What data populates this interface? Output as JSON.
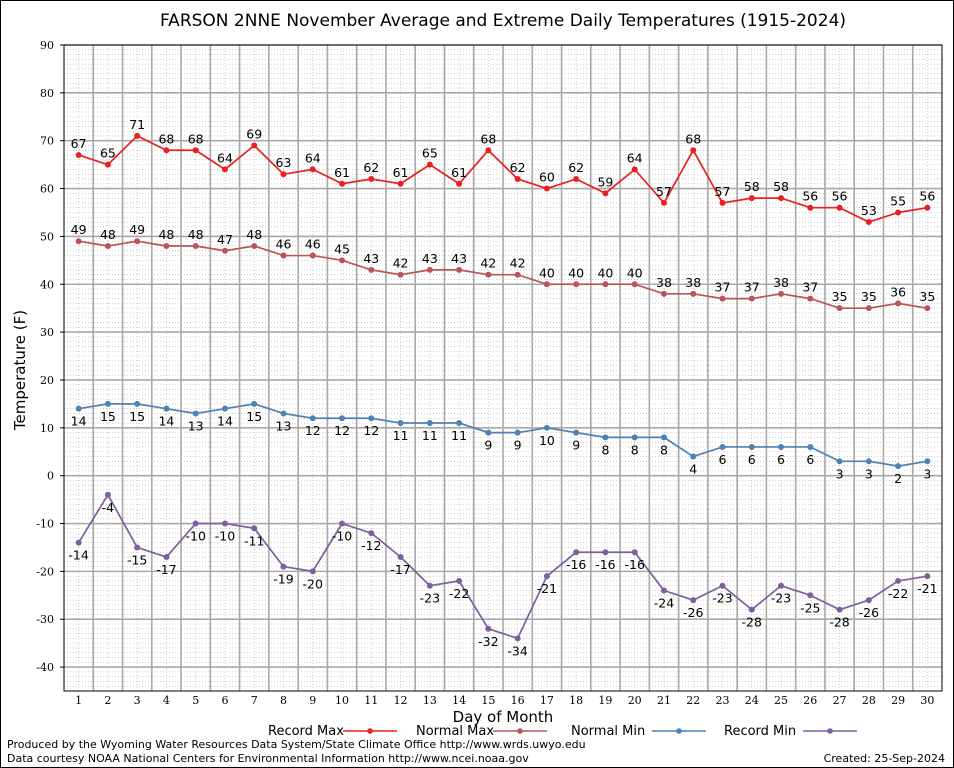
{
  "chart_data": {
    "type": "line",
    "title": "FARSON 2NNE November Average and Extreme Daily Temperatures (1915-2024)",
    "xlabel": "Day of Month",
    "ylabel": "Temperature (F)",
    "ylim": [
      -45,
      90
    ],
    "y_ticks": [
      90,
      80,
      70,
      60,
      50,
      40,
      30,
      20,
      10,
      0,
      -10,
      -20,
      -30,
      -40
    ],
    "x": [
      1,
      2,
      3,
      4,
      5,
      6,
      7,
      8,
      9,
      10,
      11,
      12,
      13,
      14,
      15,
      16,
      17,
      18,
      19,
      20,
      21,
      22,
      23,
      24,
      25,
      26,
      27,
      28,
      29,
      30
    ],
    "grid": true,
    "legend_placement": "bottom",
    "series": [
      {
        "name": "Record Max",
        "color": "#e8201f",
        "label_position": "above",
        "values": [
          67,
          65,
          71,
          68,
          68,
          64,
          69,
          63,
          64,
          61,
          62,
          61,
          65,
          61,
          68,
          62,
          60,
          62,
          59,
          64,
          57,
          68,
          57,
          58,
          58,
          56,
          56,
          53,
          55,
          56
        ]
      },
      {
        "name": "Normal Max",
        "color": "#b95556",
        "label_position": "above",
        "values": [
          49,
          48,
          49,
          48,
          48,
          47,
          48,
          46,
          46,
          45,
          43,
          42,
          43,
          43,
          42,
          42,
          40,
          40,
          40,
          40,
          38,
          38,
          37,
          37,
          38,
          37,
          35,
          35,
          36,
          35
        ]
      },
      {
        "name": "Normal Min",
        "color": "#4f81b5",
        "label_position": "below",
        "values": [
          14,
          15,
          15,
          14,
          13,
          14,
          15,
          13,
          12,
          12,
          12,
          11,
          11,
          11,
          9,
          9,
          10,
          9,
          8,
          8,
          8,
          4,
          6,
          6,
          6,
          6,
          3,
          3,
          2,
          3
        ]
      },
      {
        "name": "Record Min",
        "color": "#7e5f9c",
        "label_position": "below",
        "values": [
          -14,
          -4,
          -15,
          -17,
          -10,
          -10,
          -11,
          -19,
          -20,
          -10,
          -12,
          -17,
          -23,
          -22,
          -32,
          -34,
          -21,
          -16,
          -16,
          -16,
          -24,
          -26,
          -23,
          -28,
          -23,
          -25,
          -28,
          -26,
          -22,
          -21
        ]
      }
    ]
  },
  "legend": [
    {
      "label": "Record Max"
    },
    {
      "label": "Normal Max"
    },
    {
      "label": "Normal Min"
    },
    {
      "label": "Record Min"
    }
  ],
  "footer": {
    "line1": "Produced by the Wyoming Water Resources Data System/State Climate Office http://www.wrds.uwyo.edu",
    "line2": "Data courtesy NOAA National Centers for Environmental Information http://www.ncei.noaa.gov",
    "created": "Created:  25-Sep-2024"
  }
}
